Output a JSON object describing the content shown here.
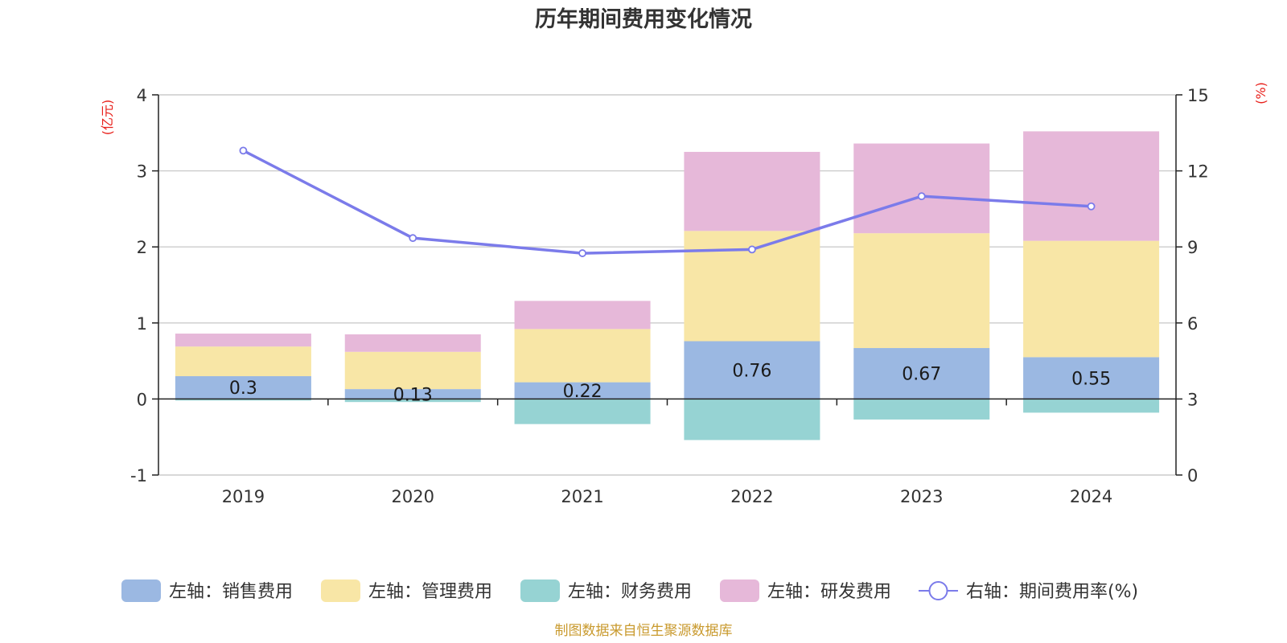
{
  "chart_data": {
    "type": "bar",
    "title": "历年期间费用变化情况",
    "categories": [
      "2019",
      "2020",
      "2021",
      "2022",
      "2023",
      "2024"
    ],
    "left_axis": {
      "unit_label": "(亿元)",
      "ylim": [
        -1,
        4
      ],
      "ticks": [
        "-1",
        "0",
        "1",
        "2",
        "3",
        "4"
      ]
    },
    "right_axis": {
      "unit_label": "(%)",
      "ylim": [
        0,
        15
      ],
      "ticks": [
        "0",
        "3",
        "6",
        "9",
        "12",
        "15"
      ]
    },
    "series": [
      {
        "name": "左轴：销售费用",
        "axis": "left",
        "kind": "bar",
        "color": "#9bb8e2",
        "values": [
          0.3,
          0.13,
          0.22,
          0.76,
          0.67,
          0.55
        ],
        "labels": [
          "0.3",
          "0.13",
          "0.22",
          "0.76",
          "0.67",
          "0.55"
        ]
      },
      {
        "name": "左轴：管理费用",
        "axis": "left",
        "kind": "bar",
        "color": "#f8e6a6",
        "values": [
          0.39,
          0.49,
          0.7,
          1.45,
          1.51,
          1.53
        ]
      },
      {
        "name": "左轴：财务费用",
        "axis": "left",
        "kind": "bar",
        "color": "#96d3d3",
        "values": [
          -0.02,
          -0.04,
          -0.33,
          -0.54,
          -0.27,
          -0.18
        ]
      },
      {
        "name": "左轴：研发费用",
        "axis": "left",
        "kind": "bar",
        "color": "#e6b8d9",
        "values": [
          0.17,
          0.23,
          0.37,
          1.04,
          1.18,
          1.44
        ]
      },
      {
        "name": "右轴：期间费用率(%)",
        "axis": "right",
        "kind": "line",
        "color": "#7b7bea",
        "values": [
          12.8,
          9.35,
          8.75,
          8.9,
          11.0,
          10.6
        ]
      }
    ],
    "legend_position": "bottom",
    "grid": true
  },
  "source_note": "制图数据来自恒生聚源数据库"
}
